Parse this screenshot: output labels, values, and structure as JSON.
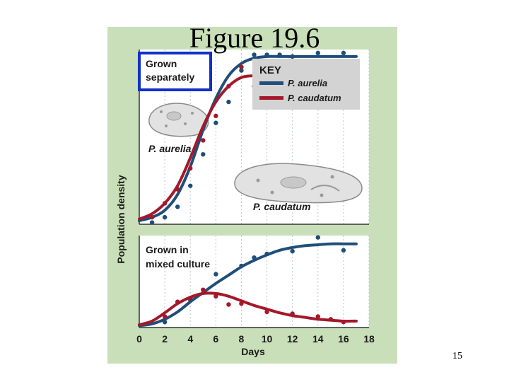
{
  "slide": {
    "title": "Figure 19.6",
    "page_number": "15"
  },
  "colors": {
    "panel": "#c9dfb9",
    "plot_bg": "#ffffff",
    "aurelia": "#1f4e7a",
    "caudatum": "#a3182a",
    "highlight_box": "#1030c8"
  },
  "chart_data": [
    {
      "type": "line",
      "panel_label": "Grown separately",
      "ylabel": "Population density",
      "xlabel": "",
      "xlim": [
        0,
        18
      ],
      "ylim": [
        0,
        1
      ],
      "key": {
        "title": "KEY",
        "entries": [
          "P. aurelia",
          "P. caudatum"
        ]
      },
      "organism_labels": [
        "P. aurelia",
        "P. caudatum"
      ],
      "series": [
        {
          "name": "P. aurelia",
          "curve": {
            "x": [
              0,
              1,
              2,
              3,
              4,
              5,
              6,
              7,
              8,
              9,
              10,
              11,
              12,
              13,
              14,
              15,
              16,
              17
            ],
            "y": [
              0.02,
              0.04,
              0.08,
              0.17,
              0.33,
              0.54,
              0.72,
              0.85,
              0.92,
              0.95,
              0.96,
              0.96,
              0.96,
              0.96,
              0.96,
              0.96,
              0.96,
              0.96
            ]
          },
          "points": {
            "x": [
              1,
              2,
              3,
              4,
              5,
              6,
              7,
              8,
              9,
              10,
              11,
              12,
              14,
              16
            ],
            "y": [
              0.01,
              0.04,
              0.1,
              0.22,
              0.4,
              0.58,
              0.7,
              0.88,
              0.97,
              0.97,
              0.97,
              0.96,
              0.98,
              0.98
            ]
          }
        },
        {
          "name": "P. caudatum",
          "curve": {
            "x": [
              0,
              1,
              2,
              3,
              4,
              5,
              6,
              7,
              8,
              9,
              10,
              11,
              12,
              13,
              14,
              15,
              16,
              17
            ],
            "y": [
              0.03,
              0.06,
              0.12,
              0.22,
              0.38,
              0.56,
              0.7,
              0.79,
              0.84,
              0.85,
              0.85,
              0.85,
              0.85,
              0.85,
              0.85,
              0.85,
              0.85,
              0.85
            ]
          },
          "points": {
            "x": [
              1,
              2,
              3,
              4,
              5,
              6,
              7,
              8,
              9,
              10,
              11,
              12,
              13,
              14,
              15,
              16
            ],
            "y": [
              0.04,
              0.12,
              0.2,
              0.32,
              0.48,
              0.62,
              0.79,
              0.9,
              0.79,
              0.88,
              0.8,
              0.85,
              0.8,
              0.84,
              0.79,
              0.85
            ]
          }
        }
      ]
    },
    {
      "type": "line",
      "panel_label": "Grown in mixed culture",
      "xlabel": "Days",
      "xticks": [
        0,
        2,
        4,
        6,
        8,
        10,
        12,
        14,
        16,
        18
      ],
      "xlim": [
        0,
        18
      ],
      "ylim": [
        0,
        1
      ],
      "series": [
        {
          "name": "P. aurelia",
          "curve": {
            "x": [
              0,
              1,
              2,
              3,
              4,
              5,
              6,
              7,
              8,
              9,
              10,
              11,
              12,
              13,
              14,
              15,
              16,
              17
            ],
            "y": [
              0.02,
              0.04,
              0.09,
              0.17,
              0.28,
              0.38,
              0.48,
              0.57,
              0.66,
              0.73,
              0.79,
              0.84,
              0.87,
              0.89,
              0.9,
              0.91,
              0.91,
              0.91
            ]
          },
          "points": {
            "x": [
              2,
              4,
              6,
              8,
              9,
              10,
              12,
              14,
              16
            ],
            "y": [
              0.06,
              0.3,
              0.58,
              0.67,
              0.76,
              0.8,
              0.83,
              0.98,
              0.84
            ]
          }
        },
        {
          "name": "P. caudatum",
          "curve": {
            "x": [
              0,
              1,
              2,
              3,
              4,
              5,
              6,
              7,
              8,
              9,
              10,
              11,
              12,
              13,
              14,
              15,
              16,
              17
            ],
            "y": [
              0.03,
              0.07,
              0.16,
              0.26,
              0.33,
              0.37,
              0.37,
              0.34,
              0.29,
              0.24,
              0.2,
              0.16,
              0.13,
              0.11,
              0.09,
              0.08,
              0.07,
              0.07
            ]
          },
          "points": {
            "x": [
              2,
              3,
              4,
              5,
              6,
              7,
              8,
              10,
              12,
              14,
              15,
              16
            ],
            "y": [
              0.12,
              0.28,
              0.32,
              0.41,
              0.34,
              0.25,
              0.26,
              0.17,
              0.15,
              0.12,
              0.09,
              0.06
            ]
          }
        }
      ]
    }
  ]
}
